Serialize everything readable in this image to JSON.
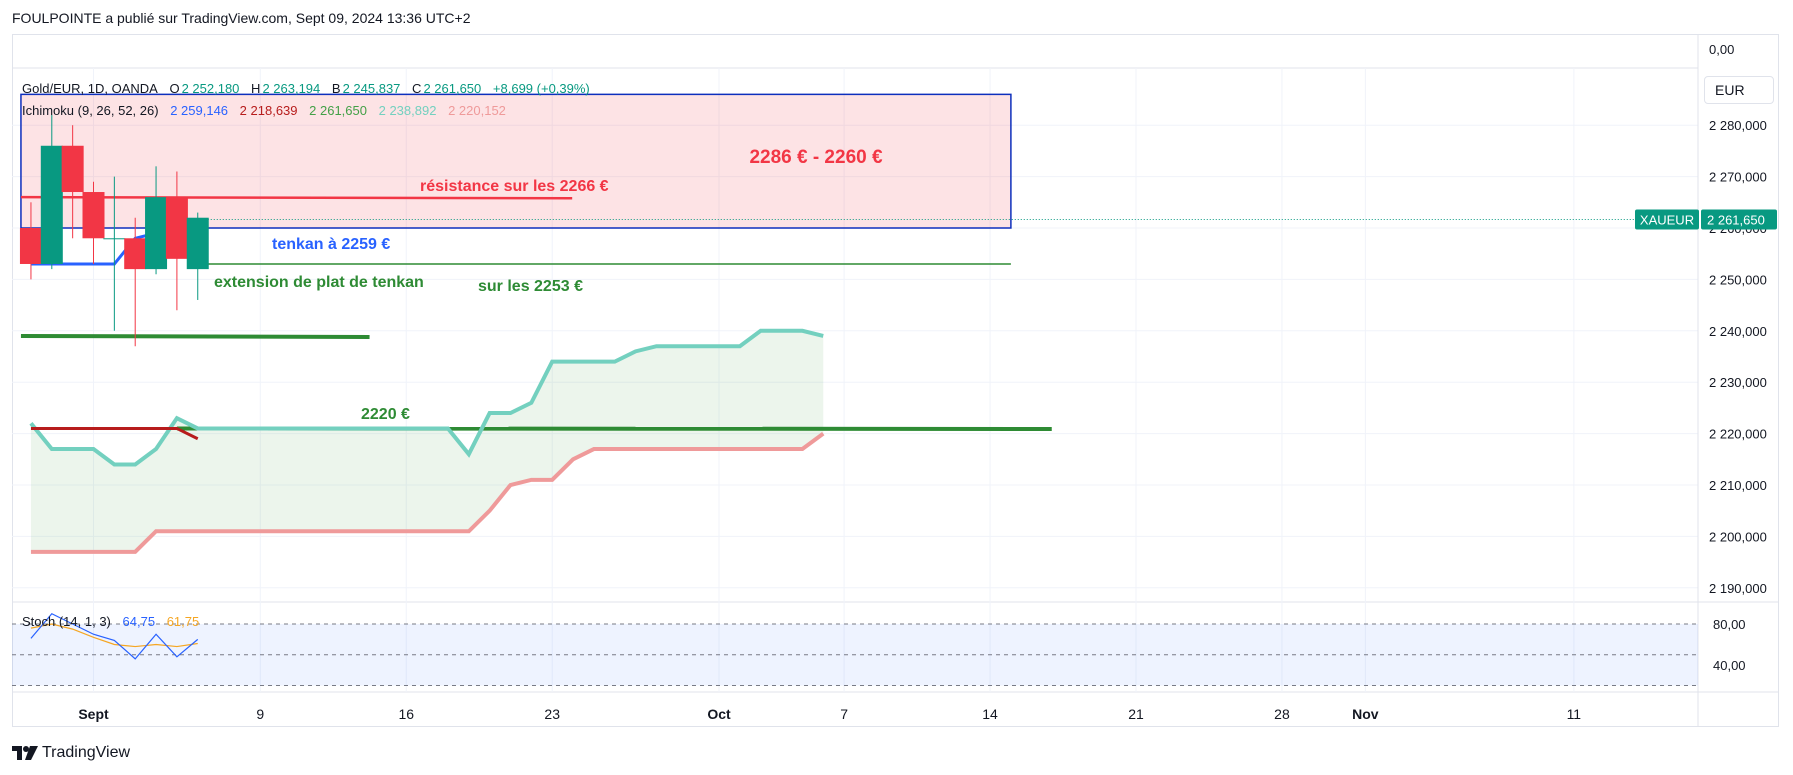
{
  "header": {
    "publisher": "FOULPOINTE a publié sur TradingView.com, Sept 09, 2024 13:36 UTC+2"
  },
  "footer": {
    "brand": "TradingView"
  },
  "colors": {
    "bull": "#089981",
    "bear": "#f23645",
    "tenkan": "#2962ff",
    "kijun": "#b71c1c",
    "lagging": "#43a047",
    "spanA": "#73d0bf",
    "spanB": "#ef9a9a",
    "annot_green": "#2e8b34",
    "annot_red": "#f23645",
    "annot_blue": "#2962ff",
    "box_border": "#0d2fbd"
  },
  "legend": {
    "symbol": "Gold/EUR, 1D, OANDA",
    "o_label": "O",
    "o_value": "2 252,180",
    "h_label": "H",
    "h_value": "2 263,194",
    "b_label": "B",
    "b_value": "2 245,837",
    "c_label": "C",
    "c_value": "2 261,650",
    "change": "+8,699 (+0,39%)",
    "ichimoku_label": "Ichimoku (9, 26, 52, 26)",
    "ichimoku_values": [
      "2 259,146",
      "2 218,639",
      "2 261,650",
      "2 238,892",
      "2 220,152"
    ],
    "stoch_label": "Stoch (14, 1, 3)",
    "stoch_values": [
      "64,75",
      "61,75"
    ]
  },
  "currency": "EUR",
  "price_badge": {
    "symbol": "XAUEUR",
    "value": "2 261,650"
  },
  "chart_data": {
    "type": "line",
    "title": "",
    "y_axis_top_label": "0,00",
    "y_ticks": [
      {
        "v": 2280,
        "label": "2 280,000"
      },
      {
        "v": 2270,
        "label": "2 270,000"
      },
      {
        "v": 2260,
        "label": "2 260,000"
      },
      {
        "v": 2250,
        "label": "2 250,000"
      },
      {
        "v": 2240,
        "label": "2 240,000"
      },
      {
        "v": 2230,
        "label": "2 230,000"
      },
      {
        "v": 2220,
        "label": "2 220,000"
      },
      {
        "v": 2210,
        "label": "2 210,000"
      },
      {
        "v": 2200,
        "label": "2 200,000"
      },
      {
        "v": 2190,
        "label": "2 190,000"
      }
    ],
    "x_ticks": [
      {
        "d": 0,
        "label": "Sept",
        "bold": true
      },
      {
        "d": 8,
        "label": "9",
        "bold": false
      },
      {
        "d": 15,
        "label": "16",
        "bold": false
      },
      {
        "d": 22,
        "label": "23",
        "bold": false
      },
      {
        "d": 30,
        "label": "Oct",
        "bold": true
      },
      {
        "d": 36,
        "label": "7",
        "bold": false
      },
      {
        "d": 43,
        "label": "14",
        "bold": false
      },
      {
        "d": 50,
        "label": "21",
        "bold": false
      },
      {
        "d": 57,
        "label": "28",
        "bold": false
      },
      {
        "d": 61,
        "label": "Nov",
        "bold": true
      },
      {
        "d": 71,
        "label": "11",
        "bold": false
      }
    ],
    "candles": [
      {
        "d": -3,
        "o": 2260,
        "h": 2265,
        "c": 2253,
        "l": 2250
      },
      {
        "d": -2,
        "o": 2253,
        "h": 2282,
        "c": 2276,
        "l": 2252
      },
      {
        "d": -1,
        "o": 2276,
        "h": 2280,
        "c": 2267,
        "l": 2258
      },
      {
        "d": 0,
        "o": 2267,
        "h": 2269,
        "c": 2258,
        "l": 2253
      },
      {
        "d": 1,
        "o": 2258,
        "h": 2270,
        "c": 2258,
        "l": 2240
      },
      {
        "d": 2,
        "o": 2258,
        "h": 2262,
        "c": 2252,
        "l": 2237
      },
      {
        "d": 3,
        "o": 2252,
        "h": 2272,
        "c": 2266,
        "l": 2251
      },
      {
        "d": 4,
        "o": 2266,
        "h": 2271,
        "c": 2254,
        "l": 2244
      },
      {
        "d": 5,
        "o": 2252,
        "h": 2263,
        "c": 2262,
        "l": 2246
      }
    ],
    "tenkan": [
      [
        -3,
        2253
      ],
      [
        -2,
        2253
      ],
      [
        -1,
        2253
      ],
      [
        0,
        2253
      ],
      [
        1,
        2253
      ],
      [
        2,
        2258
      ],
      [
        3,
        2259
      ],
      [
        4,
        2259
      ],
      [
        5,
        2259
      ]
    ],
    "kijun": [
      [
        -3,
        2221
      ],
      [
        -2,
        2221
      ],
      [
        -1,
        2221
      ],
      [
        0,
        2221
      ],
      [
        1,
        2221
      ],
      [
        2,
        2221
      ],
      [
        3,
        2221
      ],
      [
        4,
        2221
      ],
      [
        5,
        2219
      ]
    ],
    "span_a": [
      [
        -3,
        2222
      ],
      [
        -2,
        2217
      ],
      [
        -1,
        2217
      ],
      [
        0,
        2217
      ],
      [
        1,
        2214
      ],
      [
        2,
        2214
      ],
      [
        3,
        2217
      ],
      [
        4,
        2223
      ],
      [
        5,
        2221
      ],
      [
        6,
        2221
      ],
      [
        7,
        2221
      ],
      [
        8,
        2221
      ],
      [
        9,
        2221
      ],
      [
        10,
        2221
      ],
      [
        11,
        2221
      ],
      [
        12,
        2221
      ],
      [
        13,
        2221
      ],
      [
        14,
        2221
      ],
      [
        15,
        2221
      ],
      [
        16,
        2221
      ],
      [
        17,
        2221
      ],
      [
        18,
        2216
      ],
      [
        19,
        2224
      ],
      [
        20,
        2224
      ],
      [
        21,
        2226
      ],
      [
        22,
        2234
      ],
      [
        23,
        2234
      ],
      [
        24,
        2234
      ],
      [
        25,
        2234
      ],
      [
        26,
        2236
      ],
      [
        27,
        2237
      ],
      [
        28,
        2237
      ],
      [
        29,
        2237
      ],
      [
        30,
        2237
      ],
      [
        31,
        2237
      ],
      [
        32,
        2240
      ],
      [
        33,
        2240
      ],
      [
        34,
        2240
      ],
      [
        35,
        2239
      ]
    ],
    "span_b": [
      [
        -3,
        2197
      ],
      [
        -2,
        2197
      ],
      [
        -1,
        2197
      ],
      [
        0,
        2197
      ],
      [
        1,
        2197
      ],
      [
        2,
        2197
      ],
      [
        3,
        2201
      ],
      [
        4,
        2201
      ],
      [
        5,
        2201
      ],
      [
        6,
        2201
      ],
      [
        7,
        2201
      ],
      [
        8,
        2201
      ],
      [
        9,
        2201
      ],
      [
        10,
        2201
      ],
      [
        11,
        2201
      ],
      [
        12,
        2201
      ],
      [
        13,
        2201
      ],
      [
        14,
        2201
      ],
      [
        15,
        2201
      ],
      [
        16,
        2201
      ],
      [
        17,
        2201
      ],
      [
        18,
        2201
      ],
      [
        19,
        2205
      ],
      [
        20,
        2210
      ],
      [
        21,
        2211
      ],
      [
        22,
        2211
      ],
      [
        23,
        2215
      ],
      [
        24,
        2217
      ],
      [
        25,
        2217
      ],
      [
        26,
        2217
      ],
      [
        27,
        2217
      ],
      [
        28,
        2217
      ],
      [
        29,
        2217
      ],
      [
        30,
        2217
      ],
      [
        31,
        2217
      ],
      [
        32,
        2217
      ],
      [
        33,
        2217
      ],
      [
        34,
        2217
      ],
      [
        35,
        2220
      ]
    ],
    "stoch_k": [
      [
        -3,
        66
      ],
      [
        -2,
        90
      ],
      [
        -1,
        80
      ],
      [
        0,
        70
      ],
      [
        1,
        64
      ],
      [
        2,
        46
      ],
      [
        3,
        70
      ],
      [
        4,
        48
      ],
      [
        5,
        65
      ]
    ],
    "stoch_d": [
      [
        -3,
        76
      ],
      [
        -2,
        80
      ],
      [
        -1,
        75
      ],
      [
        0,
        67
      ],
      [
        1,
        60
      ],
      [
        2,
        58
      ],
      [
        3,
        60
      ],
      [
        4,
        58
      ],
      [
        5,
        61
      ]
    ],
    "stoch_ticks": [
      {
        "v": 80,
        "label": "80,00"
      },
      {
        "v": 40,
        "label": "40,00"
      }
    ],
    "drawings": {
      "resistance_box": {
        "d_from": -3,
        "d_to": 44,
        "top": 2286,
        "bottom": 2260
      },
      "resistance_line": {
        "d_from": -3,
        "d_to": 22,
        "value": 2266
      },
      "tenkan_ext": {
        "d_from": 5,
        "d_to": 44,
        "value": 2253
      },
      "lagging_line": {
        "d_from": -3,
        "d_to": 13,
        "value": 2239
      },
      "support_line": {
        "d_from": 4,
        "d_to": 45,
        "value": 2221
      }
    },
    "annotations": {
      "box_label": "2286 € - 2260 €",
      "resistance": "résistance sur les 2266 €",
      "tenkan": "tenkan à 2259 €",
      "tenkan_ext": "extension de plat de tenkan",
      "level_2253": "sur les 2253 €",
      "level_2220": "2220 €"
    }
  }
}
